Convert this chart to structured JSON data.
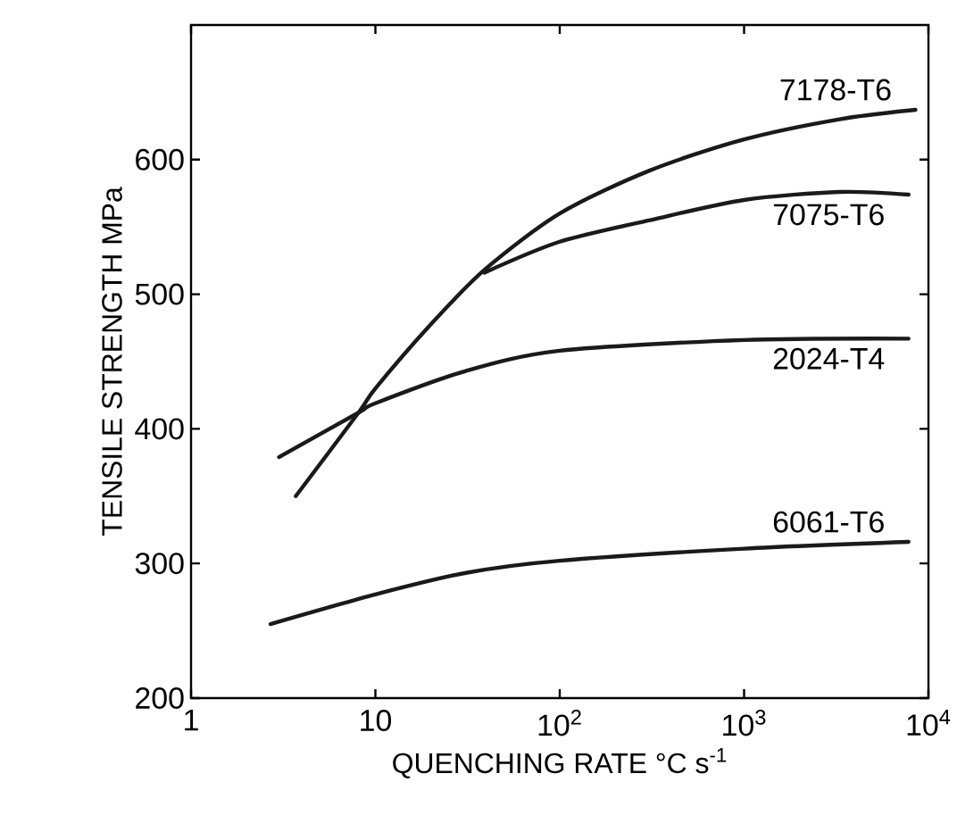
{
  "chart_data": {
    "type": "line",
    "xlabel": "QUENCHING RATE °C s$^{-1}$",
    "ylabel": "TENSILE STRENGTH MPa",
    "log": "x",
    "xlim": [
      1,
      10000
    ],
    "ylim": [
      200,
      700
    ],
    "xticks": [
      1,
      10,
      {
        "value": 100,
        "label": "10$^{2}$"
      },
      {
        "value": 1000,
        "label": "10$^{3}$"
      },
      {
        "value": 10000,
        "label": "10$^{4}$"
      }
    ],
    "yticks": [
      200,
      300,
      400,
      500,
      600
    ],
    "grid": false,
    "legend": false,
    "marker": "none",
    "line_style": "solid",
    "series": [
      {
        "name": "7178-T6",
        "color": "#1a1a1a",
        "x": [
          3.7,
          8.1,
          10,
          19.5,
          39,
          100,
          309,
          1000,
          3300,
          8500
        ],
        "values": [
          350,
          412,
          430,
          476,
          518,
          560,
          592,
          615,
          630,
          637
        ]
      },
      {
        "name": "7075-T6",
        "color": "#1a1a1a",
        "x": [
          39,
          100,
          309,
          1000,
          3300,
          7800
        ],
        "values": [
          516,
          539,
          555,
          570,
          576,
          574
        ]
      },
      {
        "name": "2024-T4",
        "color": "#1a1a1a",
        "x": [
          3.0,
          8.1,
          10,
          31,
          100,
          1000,
          7800
        ],
        "values": [
          379,
          412,
          419,
          443,
          458,
          466,
          467
        ]
      },
      {
        "name": "6061-T6",
        "color": "#1a1a1a",
        "x": [
          2.7,
          10,
          31,
          100,
          1000,
          7800
        ],
        "values": [
          255,
          277,
          293,
          302,
          311,
          316
        ]
      }
    ]
  }
}
